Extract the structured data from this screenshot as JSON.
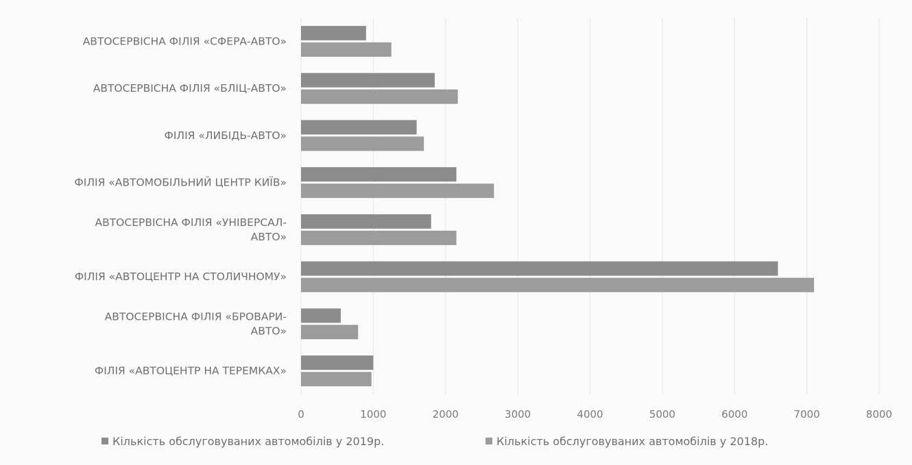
{
  "chart_data": {
    "type": "bar",
    "orientation": "horizontal",
    "categories": [
      "ФІЛІЯ «АВТОЦЕНТР НА ТЕРЕМКАХ»",
      "АВТОСЕРВІСНА ФІЛІЯ «БРОВАРИ-АВТО»",
      "ФІЛІЯ «АВТОЦЕНТР НА СТОЛИЧНОМУ»",
      "АВТОСЕРВІСНА ФІЛІЯ «УНІВЕРСАЛ-АВТО»",
      "ФІЛІЯ «АВТОМОБІЛЬНИЙ ЦЕНТР КИЇВ»",
      "ФІЛІЯ «ЛИБІДЬ-АВТО»",
      "АВТОСЕРВІСНА ФІЛІЯ «БЛІЦ-АВТО»",
      "АВТОСЕРВІСНА ФІЛІЯ «СФЕРА-АВТО»"
    ],
    "category_label_lines": [
      [
        "ФІЛІЯ «АВТОЦЕНТР НА ТЕРЕМКАХ»"
      ],
      [
        "АВТОСЕРВІСНА ФІЛІЯ «БРОВАРИ-",
        "АВТО»"
      ],
      [
        "ФІЛІЯ «АВТОЦЕНТР НА СТОЛИЧНОМУ»"
      ],
      [
        "АВТОСЕРВІСНА ФІЛІЯ «УНІВЕРСАЛ-",
        "АВТО»"
      ],
      [
        "ФІЛІЯ «АВТОМОБІЛЬНИЙ ЦЕНТР КИЇВ»"
      ],
      [
        "ФІЛІЯ «ЛИБІДЬ-АВТО»"
      ],
      [
        "АВТОСЕРВІСНА ФІЛІЯ «БЛІЦ-АВТО»"
      ],
      [
        "АВТОСЕРВІСНА ФІЛІЯ «СФЕРА-АВТО»"
      ]
    ],
    "series": [
      {
        "name": "Кількість обслуговуваних автомобілів у 2019р.",
        "values": [
          1000,
          550,
          6600,
          1800,
          2150,
          1600,
          1850,
          900
        ],
        "color": "#8c8c8c"
      },
      {
        "name": "Кількість обслуговуваних автомобілів у 2018р.",
        "values": [
          975,
          790,
          7100,
          2150,
          2670,
          1700,
          2170,
          1250
        ],
        "color": "#9c9c9c"
      }
    ],
    "xlim": [
      0,
      8000
    ],
    "xticks": [
      0,
      1000,
      2000,
      3000,
      4000,
      5000,
      6000,
      7000,
      8000
    ],
    "xtick_labels": [
      "0",
      "1000",
      "2000",
      "3000",
      "4000",
      "5000",
      "6000",
      "7000",
      "8000"
    ],
    "grid": "vertical",
    "legend": "bottom",
    "title": "",
    "xlabel": "",
    "ylabel": ""
  }
}
